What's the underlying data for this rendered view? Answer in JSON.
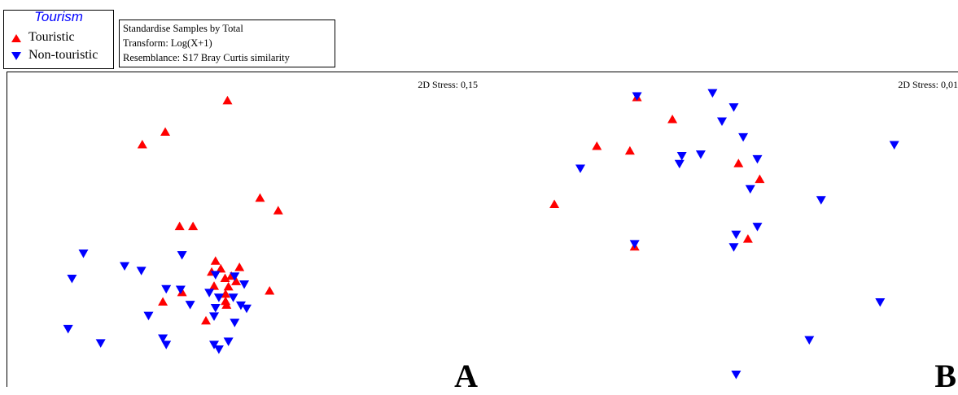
{
  "legend": {
    "title": "Tourism",
    "items": [
      {
        "label": "Touristic",
        "color": "#ff0000",
        "marker": "triangle-up-icon"
      },
      {
        "label": "Non-touristic",
        "color": "#0000ff",
        "marker": "triangle-down-icon"
      }
    ]
  },
  "info": {
    "line1": "Standardise Samples by Total",
    "line2": "Transform: Log(X+1)",
    "line3": "Resemblance: S17 Bray Curtis similarity"
  },
  "chart_data": [
    {
      "type": "scatter",
      "panel_label": "A",
      "stress_label": "2D Stress: 0,15",
      "xlim": [
        0,
        100
      ],
      "ylim": [
        0,
        100
      ],
      "series": [
        {
          "name": "Touristic",
          "color": "#ff0000",
          "marker": "triangle-up",
          "points": [
            [
              46,
              91
            ],
            [
              33,
              81
            ],
            [
              28.2,
              77
            ],
            [
              52.8,
              60
            ],
            [
              56.6,
              56
            ],
            [
              36,
              51
            ],
            [
              38.8,
              51
            ],
            [
              43.5,
              40
            ],
            [
              44.6,
              37.5
            ],
            [
              48.5,
              38
            ],
            [
              42.7,
              36.5
            ],
            [
              45.5,
              34.5
            ],
            [
              46.8,
              35.2
            ],
            [
              47.8,
              33.5
            ],
            [
              46.2,
              31.8
            ],
            [
              43.2,
              32
            ],
            [
              36.5,
              30
            ],
            [
              45.6,
              29.5
            ],
            [
              54.8,
              30.5
            ],
            [
              45.6,
              27.2
            ],
            [
              32.5,
              27
            ],
            [
              45.8,
              26
            ],
            [
              41.5,
              21
            ]
          ]
        },
        {
          "name": "Non-touristic",
          "color": "#0000ff",
          "marker": "triangle-down",
          "points": [
            [
              15.9,
              42.5
            ],
            [
              36.5,
              42
            ],
            [
              24.5,
              38.5
            ],
            [
              28,
              37
            ],
            [
              13.5,
              34.5
            ],
            [
              43.5,
              35.7
            ],
            [
              47.5,
              35.2
            ],
            [
              49.5,
              32.7
            ],
            [
              33.2,
              31.2
            ],
            [
              36.2,
              31
            ],
            [
              42.2,
              30
            ],
            [
              47.2,
              28.5
            ],
            [
              44.2,
              28.5
            ],
            [
              38.2,
              26.2
            ],
            [
              43.5,
              25.2
            ],
            [
              48.8,
              26
            ],
            [
              50,
              25
            ],
            [
              29.5,
              22.7
            ],
            [
              43.2,
              22.5
            ],
            [
              47.5,
              20.5
            ],
            [
              12.7,
              18.5
            ],
            [
              32.5,
              15.5
            ],
            [
              46.2,
              14.5
            ],
            [
              19.5,
              14
            ],
            [
              33.2,
              13.5
            ],
            [
              43.2,
              13.5
            ],
            [
              44.2,
              12
            ]
          ]
        }
      ]
    },
    {
      "type": "scatter",
      "panel_label": "B",
      "stress_label": "2D Stress: 0,01",
      "xlim": [
        0,
        100
      ],
      "ylim": [
        0,
        100
      ],
      "series": [
        {
          "name": "Touristic",
          "color": "#ff0000",
          "marker": "triangle-up",
          "points": [
            [
              32,
              92
            ],
            [
              39.5,
              85
            ],
            [
              23.5,
              76.5
            ],
            [
              30.5,
              75
            ],
            [
              53.5,
              71
            ],
            [
              58,
              66
            ],
            [
              14.5,
              58
            ],
            [
              55.5,
              47
            ],
            [
              31.5,
              44.5
            ]
          ]
        },
        {
          "name": "Non-touristic",
          "color": "#0000ff",
          "marker": "triangle-down",
          "points": [
            [
              32,
              92.5
            ],
            [
              48,
              93.5
            ],
            [
              52.5,
              89
            ],
            [
              50,
              84.5
            ],
            [
              54.5,
              79.5
            ],
            [
              86.5,
              77
            ],
            [
              45.5,
              74
            ],
            [
              41.5,
              73.5
            ],
            [
              57.5,
              72.5
            ],
            [
              41,
              71
            ],
            [
              20,
              69.5
            ],
            [
              56,
              63
            ],
            [
              71,
              59.5
            ],
            [
              57.5,
              51
            ],
            [
              53,
              48.5
            ],
            [
              31.5,
              45.5
            ],
            [
              52.5,
              44.5
            ],
            [
              83.5,
              27
            ],
            [
              68.5,
              15
            ],
            [
              53,
              4
            ]
          ]
        }
      ]
    }
  ]
}
